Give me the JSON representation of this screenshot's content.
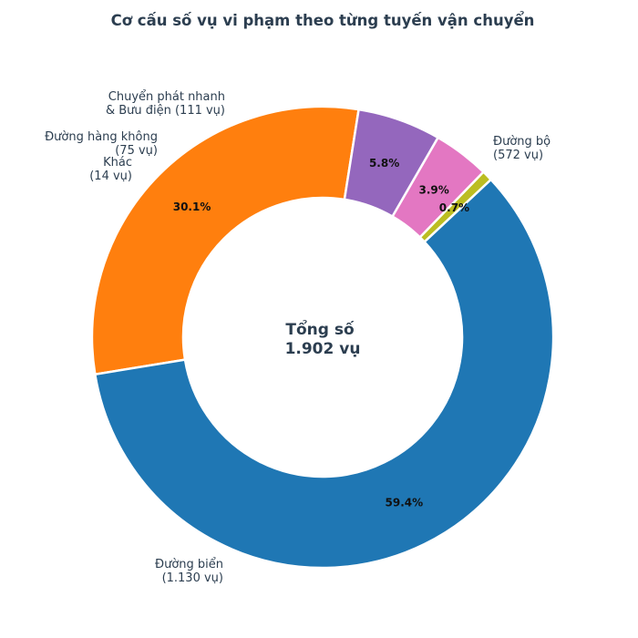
{
  "chart_data": {
    "type": "pie",
    "variant": "donut",
    "title": "Cơ cấu số vụ vi phạm theo từng tuyến vận chuyển",
    "center_text": [
      "Tổng số",
      "1.902 vụ"
    ],
    "total": 1902,
    "slices": [
      {
        "label": [
          "Đường bộ",
          "(572 vụ)"
        ],
        "value": 572,
        "percent": "30.1%",
        "color": "#ff7f0e"
      },
      {
        "label": [
          "Đường biển",
          "(1.130 vụ)"
        ],
        "value": 1130,
        "percent": "59.4%",
        "color": "#1f77b4"
      },
      {
        "label": [
          "Khác",
          "(14 vụ)"
        ],
        "value": 14,
        "percent": "0.7%",
        "color": "#bcbd22"
      },
      {
        "label": [
          "Đường hàng không",
          "(75 vụ)"
        ],
        "value": 75,
        "percent": "3.9%",
        "color": "#e377c2"
      },
      {
        "label": [
          "Chuyển phát nhanh",
          "& Bưu điện (111 vụ)"
        ],
        "value": 111,
        "percent": "5.8%",
        "color": "#9467bd"
      }
    ]
  }
}
